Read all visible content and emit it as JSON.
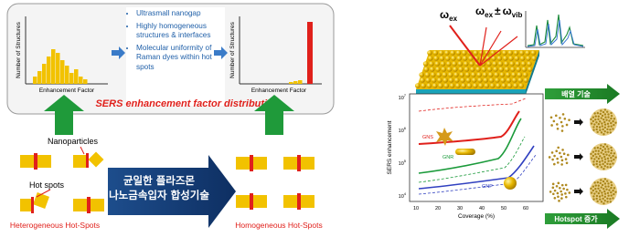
{
  "top_panel": {
    "histogram_left": {
      "y_label": "Number of Structures",
      "x_label": "Enhancement Factor"
    },
    "bullets": [
      "Ultrasmall nanogap",
      "Highly homogeneous structures & interfaces",
      "Molecular uniformity of Raman dyes within hot spots"
    ],
    "histogram_right": {
      "y_label": "Number of Structures",
      "x_label": "Enhancement Factor"
    },
    "caption": "SERS enhancement factor distribution"
  },
  "bottom_left": {
    "nanoparticles_label": "Nanoparticles",
    "hot_spots_label": "Hot spots",
    "heterogeneous_label": "Heterogeneous Hot-Spots",
    "arrow_text": [
      "균일한 플라즈몬",
      "나노금속입자 합성기술"
    ],
    "homogeneous_label": "Homogeneous Hot-Spots"
  },
  "right_panel": {
    "beam_in": {
      "symbol": "ω",
      "sub": "ex"
    },
    "beam_out": {
      "symbol": "ω",
      "sub": "ex",
      "pm": "±",
      "symbol2": "ω",
      "sub2": "vib"
    },
    "chart": {
      "y_label": "SERS enhancement",
      "x_label": "Coverage (%)",
      "xticks": [
        10,
        20,
        30,
        40,
        50,
        60
      ],
      "yticks": [
        {
          "base": "10",
          "exp": "7"
        },
        {
          "base": "10",
          "exp": "6"
        },
        {
          "base": "10",
          "exp": "5"
        },
        {
          "base": "10",
          "exp": "4"
        }
      ],
      "curve_labels": [
        "GNS",
        "GNR",
        "GNP"
      ]
    },
    "array_label": "배열 기술",
    "hotspot_label": "Hotspot 증가"
  }
}
